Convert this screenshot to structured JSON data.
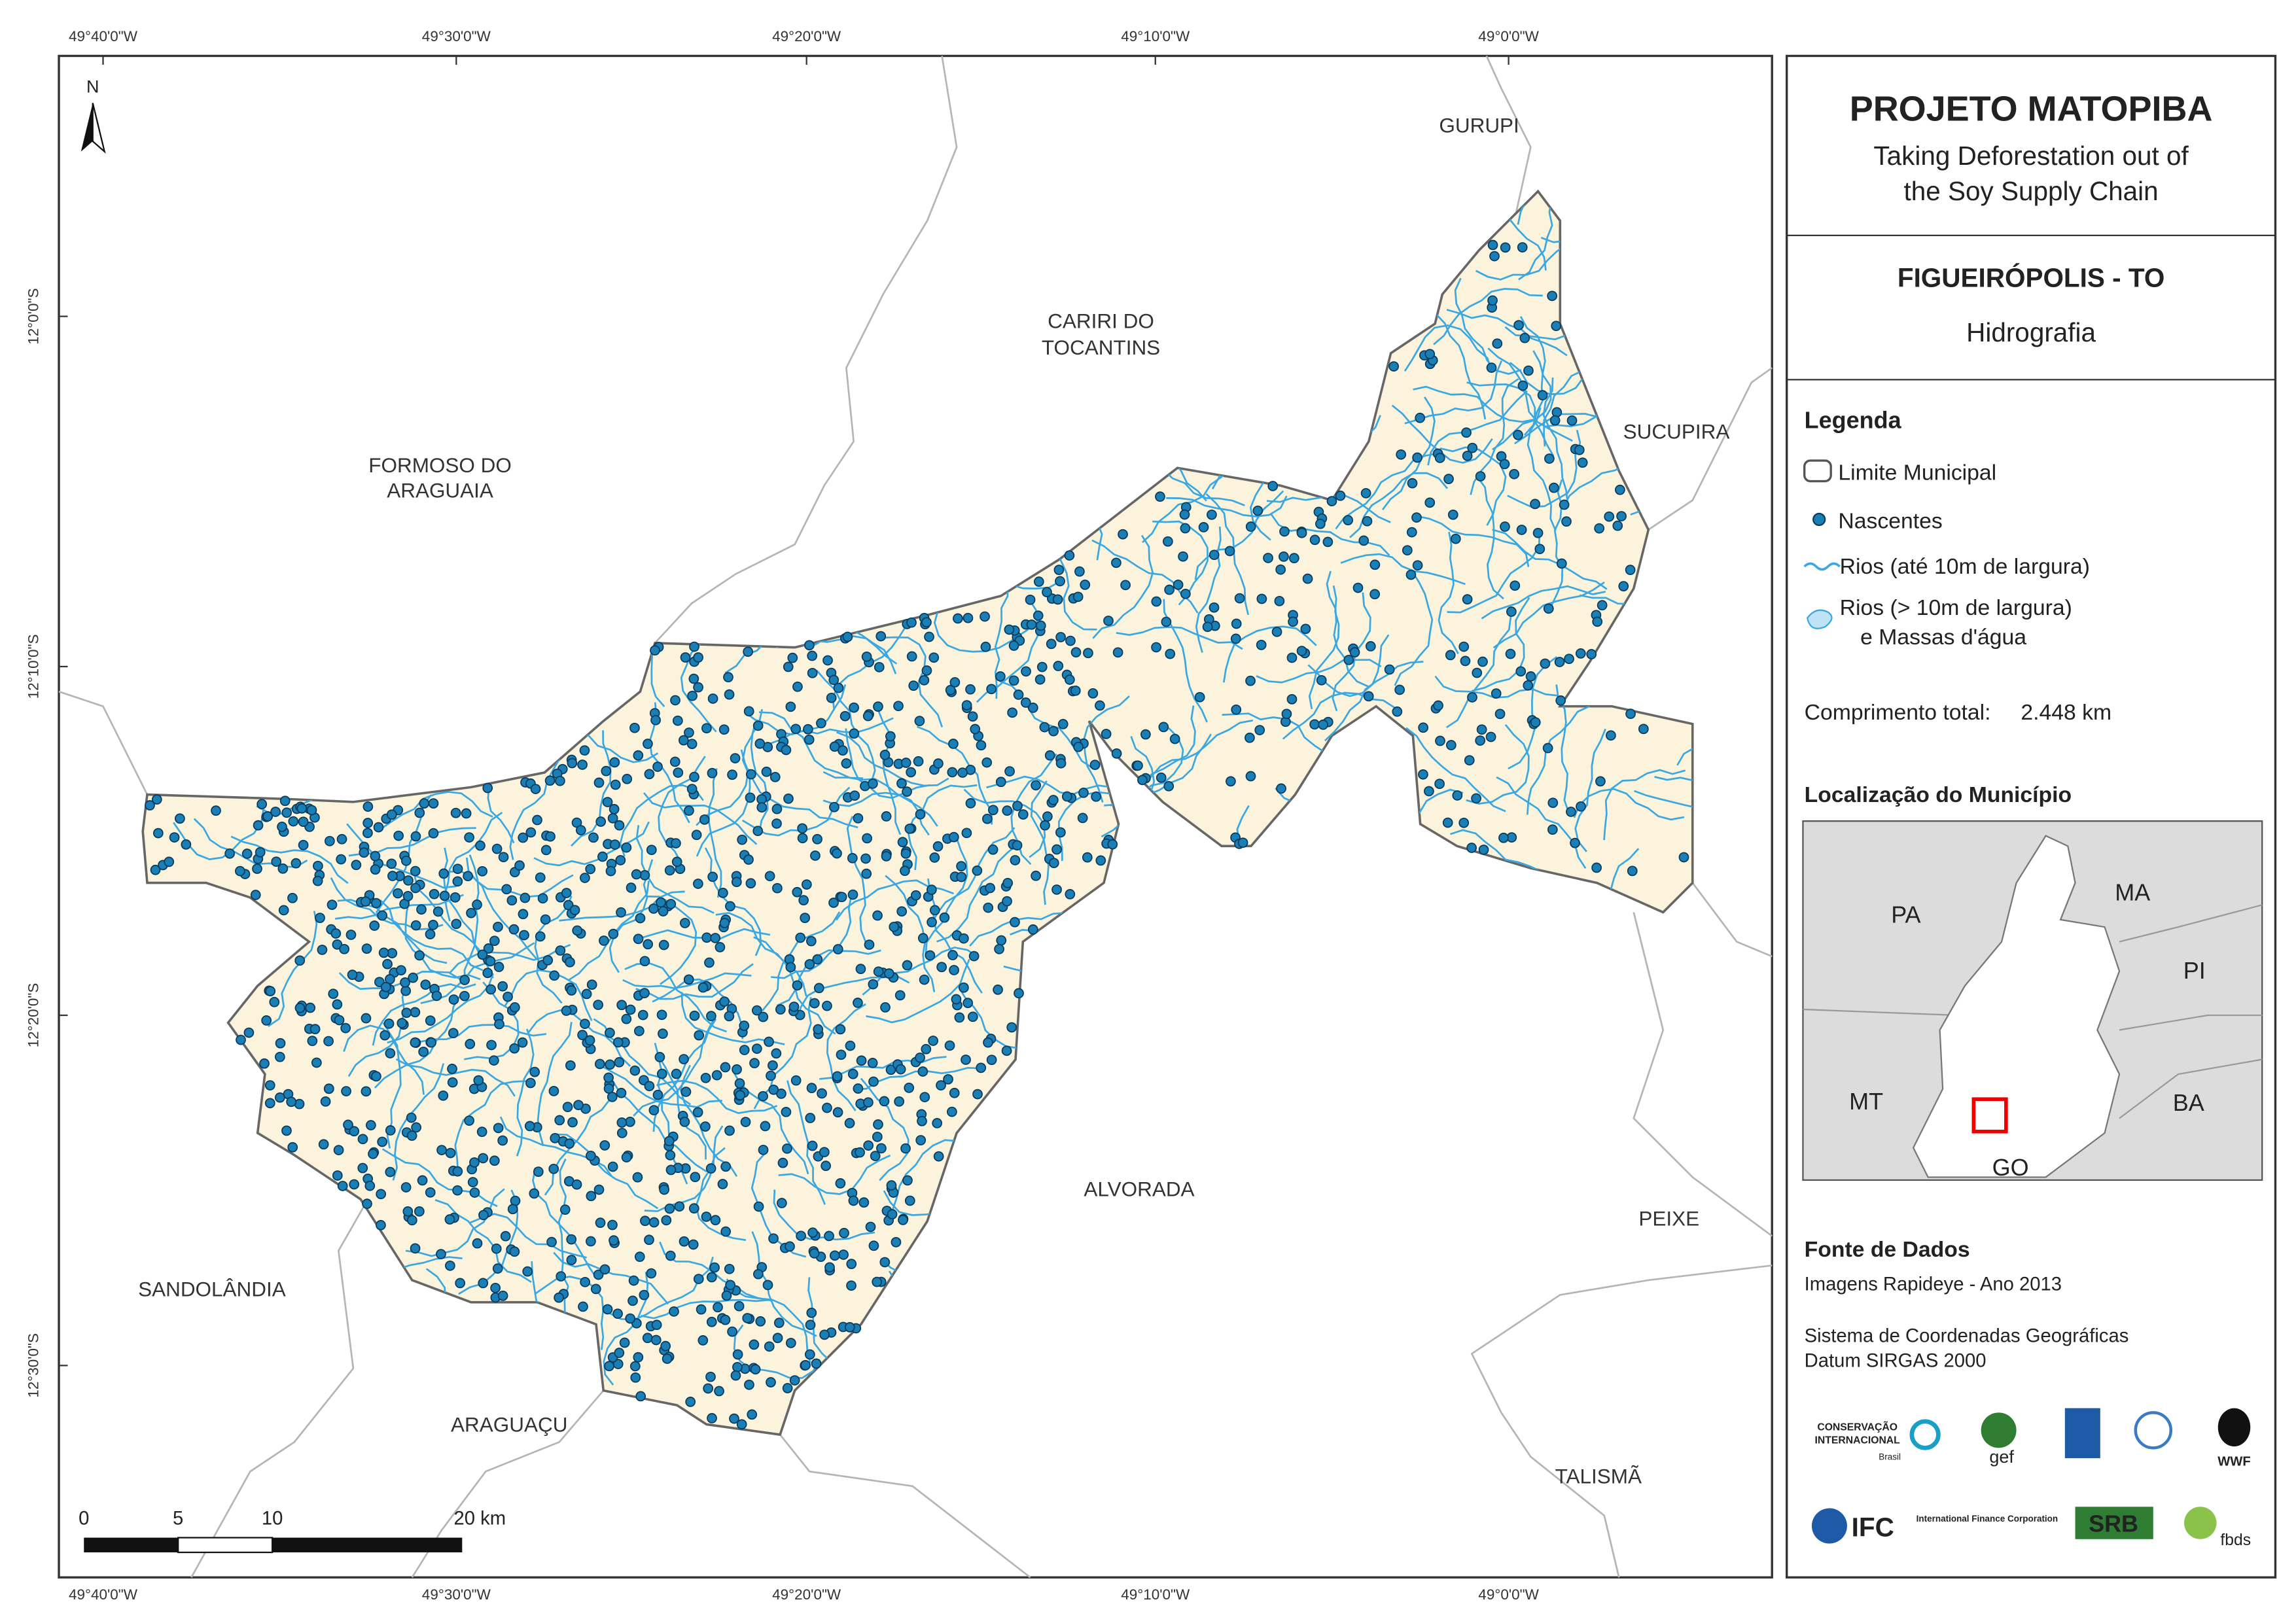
{
  "header": {
    "title": "PROJETO MATOPIBA",
    "subtitle": [
      "Taking Deforestation out of",
      "the Soy Supply Chain"
    ]
  },
  "map_title": {
    "municipality": "FIGUEIRÓPOLIS - TO",
    "theme": "Hidrografia"
  },
  "legend": {
    "title": "Legenda",
    "items": [
      "Limite Municipal",
      "Nascentes",
      "Rios (até 10m de largura)",
      [
        "Rios (> 10m de largura)",
        "e Massas d'água"
      ]
    ]
  },
  "total_length": {
    "label": "Comprimento total:",
    "value": "2.448 km"
  },
  "location": {
    "title": "Localização do Município",
    "states": [
      "PA",
      "MA",
      "PI",
      "MT",
      "BA",
      "GO"
    ]
  },
  "sources": {
    "title": "Fonte de Dados",
    "lines": [
      "Imagens Rapideye - Ano 2013",
      "Sistema de Coordenadas Geográficas",
      "Datum SIRGAS 2000"
    ]
  },
  "logos": [
    "CONSERVAÇÃO",
    "INTERNACIONAL",
    "Brasil",
    "gef",
    "WWF",
    "IFC",
    "International Finance Corporation",
    "SRB",
    "fbds"
  ],
  "map": {
    "north": "N",
    "lon_labels": [
      "49°40'0\"W",
      "49°30'0\"W",
      "49°20'0\"W",
      "49°10'0\"W",
      "49°0'0\"W"
    ],
    "lat_labels": [
      "12°0'0\"S",
      "12°10'0\"S",
      "12°20'0\"S",
      "12°30'0\"S"
    ],
    "neighbors": [
      "GURUPI",
      [
        "CARIRI DO",
        "TOCANTINS"
      ],
      [
        "FORMOSO DO",
        "ARAGUAIA"
      ],
      "SUCUPIRA",
      "ALVORADA",
      "PEIXE",
      "SANDOLÂNDIA",
      "ARAGUAÇU",
      "TALISMÃ"
    ],
    "scale": [
      "0",
      "5",
      "10",
      "20 km"
    ]
  }
}
